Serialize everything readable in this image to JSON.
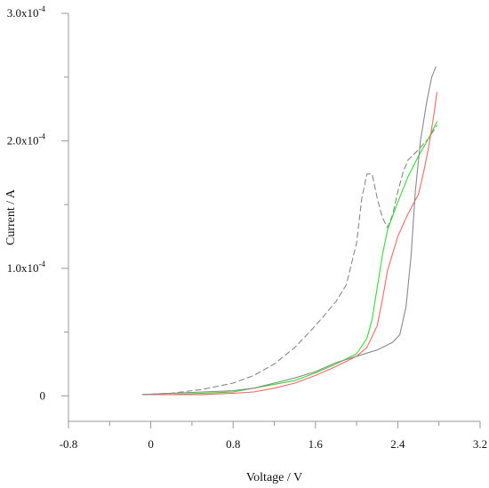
{
  "chart_data": {
    "type": "line",
    "xlabel": "Voltage / V",
    "ylabel": "Current / A",
    "xlim": [
      -0.8,
      3.2
    ],
    "ylim": [
      -2e-05,
      0.0003
    ],
    "grid": false,
    "x_ticks": [
      {
        "value": -0.8,
        "label": "-0.8"
      },
      {
        "value": 0.0,
        "label": "0"
      },
      {
        "value": 0.8,
        "label": "0.8"
      },
      {
        "value": 1.6,
        "label": "1.6"
      },
      {
        "value": 2.4,
        "label": "2.4"
      },
      {
        "value": 3.2,
        "label": "3.2"
      }
    ],
    "y_ticks": [
      {
        "value": 0,
        "mantissa": "0",
        "exponent": ""
      },
      {
        "value": 0.0001,
        "mantissa": "1.0x10",
        "exponent": "-4"
      },
      {
        "value": 0.0002,
        "mantissa": "2.0x10",
        "exponent": "-4"
      },
      {
        "value": 0.0003,
        "mantissa": "3.0x10",
        "exponent": "-4"
      }
    ],
    "series": [
      {
        "color": "#888888",
        "dash": true,
        "x": [
          -0.08,
          0.2,
          0.5,
          0.8,
          1.0,
          1.2,
          1.4,
          1.6,
          1.8,
          1.9,
          2.0,
          2.05,
          2.1,
          2.15,
          2.2,
          2.25,
          2.3,
          2.35,
          2.4,
          2.45,
          2.5,
          2.6,
          2.7,
          2.78
        ],
        "y": [
          1e-06,
          2e-06,
          5e-06,
          1e-05,
          1.6e-05,
          2.5e-05,
          3.8e-05,
          5.5e-05,
          7.4e-05,
          8.7e-05,
          0.00012,
          0.000155,
          0.000174,
          0.000174,
          0.000155,
          0.00014,
          0.000132,
          0.000142,
          0.00016,
          0.000175,
          0.000185,
          0.000193,
          0.000202,
          0.000212
        ]
      },
      {
        "color": "#33dd33",
        "dash": false,
        "x": [
          -0.08,
          0.2,
          0.5,
          0.8,
          1.0,
          1.2,
          1.4,
          1.6,
          1.8,
          2.0,
          2.1,
          2.15,
          2.2,
          2.25,
          2.3,
          2.4,
          2.5,
          2.6,
          2.7,
          2.78
        ],
        "y": [
          1e-06,
          1e-06,
          2e-06,
          3e-06,
          6e-06,
          9e-06,
          1.2e-05,
          1.8e-05,
          2.5e-05,
          3.3e-05,
          4.5e-05,
          6e-05,
          8.5e-05,
          0.00011,
          0.00013,
          0.000152,
          0.000172,
          0.000188,
          0.000202,
          0.000215
        ]
      },
      {
        "color": "#ff6666",
        "dash": false,
        "x": [
          -0.08,
          0.2,
          0.5,
          0.8,
          1.0,
          1.2,
          1.4,
          1.6,
          1.8,
          2.0,
          2.1,
          2.2,
          2.25,
          2.3,
          2.4,
          2.5,
          2.6,
          2.65,
          2.7,
          2.75,
          2.78
        ],
        "y": [
          1e-06,
          1e-06,
          1e-06,
          2e-06,
          3e-06,
          6e-06,
          1e-05,
          1.6e-05,
          2.3e-05,
          3.1e-05,
          3.8e-05,
          5.5e-05,
          7.5e-05,
          9.8e-05,
          0.000125,
          0.000143,
          0.000158,
          0.000175,
          0.000195,
          0.00022,
          0.000238
        ]
      },
      {
        "color": "#8a8a8a",
        "dash": false,
        "x": [
          -0.08,
          0.2,
          0.5,
          0.8,
          1.0,
          1.2,
          1.4,
          1.6,
          1.8,
          2.0,
          2.2,
          2.35,
          2.42,
          2.48,
          2.53,
          2.57,
          2.62,
          2.68,
          2.73,
          2.77
        ],
        "y": [
          1e-06,
          2e-06,
          3e-06,
          4e-06,
          6e-06,
          1e-05,
          1.4e-05,
          1.9e-05,
          2.6e-05,
          3.1e-05,
          3.6e-05,
          4.2e-05,
          4.8e-05,
          7e-05,
          0.00011,
          0.00016,
          0.0002,
          0.00023,
          0.00025,
          0.000258
        ]
      }
    ]
  }
}
